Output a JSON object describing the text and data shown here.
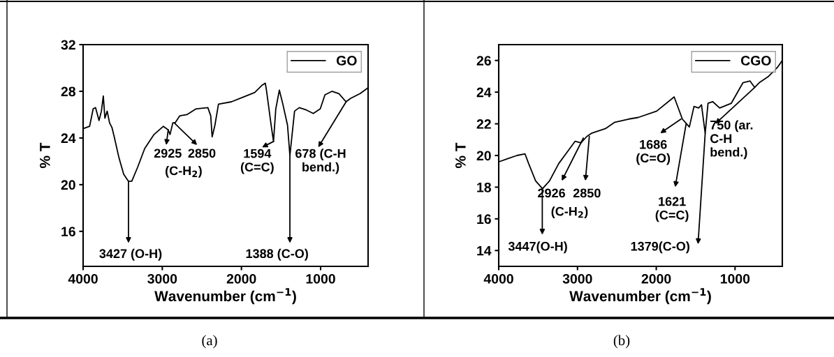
{
  "chart_data": [
    {
      "type": "line",
      "xlabel": "Wavenumber (cm$^{−1}$)",
      "ylabel": "% T",
      "xlim": [
        4000,
        400
      ],
      "ylim": [
        13,
        32
      ],
      "xticks": [
        4000,
        3000,
        2000,
        1000
      ],
      "yticks": [
        16,
        20,
        24,
        28,
        32
      ],
      "grid": false,
      "legend": "top right",
      "marker": "none",
      "line_style": "solid",
      "series": [
        {
          "name": "GO",
          "color": "#000000",
          "x": [
            4000,
            3918,
            3873,
            3843,
            3799,
            3769,
            3745,
            3725,
            3696,
            3666,
            3636,
            3607,
            3547,
            3488,
            3429,
            3385,
            3311,
            3222,
            3104,
            2986,
            2926,
            2902,
            2867,
            2838,
            2779,
            2690,
            2572,
            2424,
            2388,
            2370,
            2335,
            2290,
            2127,
            1980,
            1832,
            1743,
            1699,
            1684,
            1625,
            1595,
            1566,
            1521,
            1477,
            1418,
            1388,
            1329,
            1270,
            1181,
            1092,
            1004,
            945,
            857,
            768,
            679,
            620,
            502,
            400
          ],
          "values": [
            24.8,
            25.0,
            26.5,
            26.6,
            25.5,
            26.3,
            27.6,
            25.7,
            26.3,
            25.3,
            24.9,
            24.1,
            22.3,
            20.9,
            20.3,
            20.3,
            21.5,
            23.1,
            24.3,
            25.0,
            24.7,
            24.3,
            25.3,
            25.3,
            25.9,
            26.0,
            26.5,
            26.6,
            25.9,
            24.1,
            25.1,
            26.9,
            27.1,
            27.5,
            27.9,
            28.5,
            28.7,
            28.1,
            25.1,
            23.7,
            26.5,
            28.1,
            26.9,
            25.1,
            22.5,
            26.3,
            26.6,
            26.4,
            26.1,
            26.5,
            27.7,
            28.0,
            27.8,
            27.1,
            27.4,
            27.8,
            28.3
          ]
        }
      ],
      "annotations": [
        {
          "text": "3427 (O-H)",
          "x": 3427,
          "y": 20.3
        },
        {
          "text": "2925",
          "x": 2925,
          "y": 24.7
        },
        {
          "text": "2850",
          "x": 2850,
          "y": 25.3
        },
        "(C-H$_{2}$)",
        {
          "text": "1594\n(C=C)",
          "x": 1594,
          "y": 23.7
        },
        {
          "text": "1388 (C-O)",
          "x": 1388,
          "y": 22.5
        },
        {
          "text": "678 (C-H\nbend.)",
          "x": 678,
          "y": 27.1
        },
        "(a)"
      ]
    },
    {
      "type": "line",
      "xlabel": "Wavenumber (cm$^{−1}$)",
      "ylabel": "% T",
      "xlim": [
        4000,
        400
      ],
      "ylim": [
        13,
        27
      ],
      "xticks": [
        4000,
        3000,
        2000,
        1000
      ],
      "yticks": [
        14,
        16,
        18,
        20,
        22,
        24,
        26
      ],
      "grid": false,
      "legend": "top right",
      "marker": "none",
      "line_style": "solid",
      "series": [
        {
          "name": "CGO",
          "color": "#000000",
          "x": [
            4000,
            3888,
            3769,
            3666,
            3621,
            3532,
            3444,
            3355,
            3237,
            3119,
            3030,
            2956,
            2882,
            2823,
            2645,
            2527,
            2350,
            2231,
            1995,
            1773,
            1669,
            1580,
            1521,
            1462,
            1426,
            1379,
            1343,
            1284,
            1195,
            1047,
            899,
            810,
            751,
            692,
            574,
            456,
            400
          ],
          "values": [
            19.6,
            19.8,
            20.0,
            20.1,
            19.5,
            18.4,
            17.9,
            18.4,
            19.5,
            20.3,
            20.9,
            20.8,
            21.2,
            21.4,
            21.7,
            22.1,
            22.3,
            22.4,
            22.8,
            23.7,
            22.3,
            21.8,
            23.1,
            23.0,
            23.2,
            21.4,
            23.3,
            23.4,
            23.0,
            23.3,
            24.6,
            24.7,
            24.3,
            24.6,
            25.0,
            25.6,
            26.0
          ]
        }
      ],
      "annotations": [
        {
          "text": "3447(O-H)",
          "x": 3447,
          "y": 17.9
        },
        {
          "text": "2926",
          "x": 2926,
          "y": 21.1
        },
        {
          "text": "2850",
          "x": 2850,
          "y": 21.2
        },
        "(C-H$_{2}$)",
        {
          "text": "1686\n(C=O)",
          "x": 1686,
          "y": 22.3
        },
        {
          "text": "1621\n(C=C)",
          "x": 1621,
          "y": 22.0
        },
        {
          "text": "1379(C-O)",
          "x": 1379,
          "y": 21.4
        },
        {
          "text": "750 (ar.\nC-H\nbend.)",
          "x": 750,
          "y": 24.3
        },
        "(b)"
      ]
    }
  ]
}
